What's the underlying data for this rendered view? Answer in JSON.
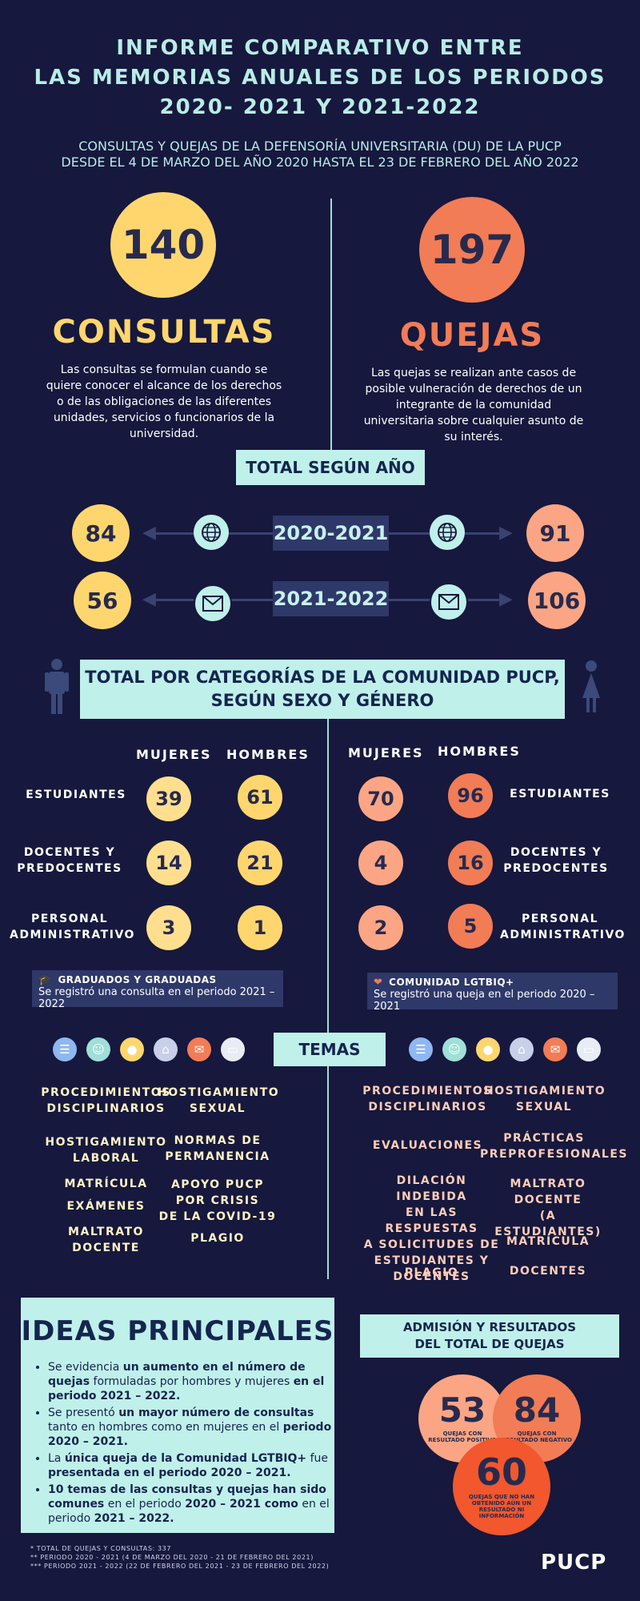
{
  "title": {
    "line1": "INFORME COMPARATIVO ENTRE",
    "line2": "LAS MEMORIAS ANUALES DE LOS PERIODOS",
    "line3": "2020- 2021 Y 2021-2022"
  },
  "subtitle": {
    "line1": "CONSULTAS Y QUEJAS  DE LA DEFENSORÍA UNIVERSITARIA (DU) DE LA PUCP",
    "line2": "DESDE EL 4 DE MARZO DEL AÑO 2020  HASTA EL 23 DE FEBRERO DEL AÑO 2022"
  },
  "consultas": {
    "total": "140",
    "label": "CONSULTAS",
    "description": "Las consultas se formulan cuando se quiere conocer el alcance de los derechos o de las obligaciones de las diferentes unidades, servicios o funcionarios de la universidad.",
    "color": "#ffd66e"
  },
  "quejas": {
    "total": "197",
    "label": "QUEJAS",
    "description": "Las quejas se realizan ante casos de posible vulneración de derechos de un integrante de la comunidad universitaria sobre cualquier asunto de su interés.",
    "color": "#f27c55"
  },
  "by_year": {
    "heading": "TOTAL SEGÚN AÑO",
    "rows": [
      {
        "year": "2020-2021",
        "consultas": "84",
        "quejas": "91",
        "icon": "globe-icon"
      },
      {
        "year": "2021-2022",
        "consultas": "56",
        "quejas": "106",
        "icon": "mail-icon"
      }
    ]
  },
  "categories": {
    "heading_line1": "TOTAL POR CATEGORÍAS DE LA COMUNIDAD PUCP,",
    "heading_line2": "SEGÚN SEXO Y GÉNERO",
    "women": "MUJERES",
    "men": "HOMBRES",
    "rows": [
      {
        "label": "ESTUDIANTES",
        "c_m": "39",
        "c_h": "61",
        "q_m": "70",
        "q_h": "96"
      },
      {
        "label_line1": "DOCENTES Y",
        "label_line2": "PREDOCENTES",
        "c_m": "14",
        "c_h": "21",
        "q_m": "4",
        "q_h": "16"
      },
      {
        "label_line1": "PERSONAL",
        "label_line2": "ADMINISTRATIVO",
        "c_m": "3",
        "c_h": "1",
        "q_m": "2",
        "q_h": "5"
      }
    ],
    "note_left": {
      "title": "GRADUADOS Y GRADUADAS",
      "text": "Se registró una consulta en el periodo 2021 – 2022",
      "icon": "graduation-cap-icon"
    },
    "note_right": {
      "title": "COMUNIDAD LGTBIQ+",
      "text": "Se registró una queja en el periodo 2020 – 2021",
      "icon": "rainbow-heart-icon"
    }
  },
  "temas": {
    "heading": "TEMAS",
    "icons": [
      "clipboard-icon",
      "group-icon",
      "person-icon",
      "building-icon",
      "mail-icon",
      "presentation-icon"
    ],
    "left": [
      {
        "l1": "PROCEDIMIENTOS",
        "l2": "DISCIPLINARIOS"
      },
      {
        "l1": "HOSTIGAMIENTO",
        "l2": "SEXUAL"
      },
      {
        "l1": "HOSTIGAMIENTO",
        "l2": "LABORAL"
      },
      {
        "l1": "NORMAS DE",
        "l2": "PERMANENCIA"
      },
      {
        "l1": "MATRÍCULA"
      },
      {
        "l1": "APOYO PUCP",
        "l2": "POR CRISIS",
        "l3": "DE LA COVID-19"
      },
      {
        "l1": "EXÁMENES"
      },
      {
        "l1": "MALTRATO",
        "l2": "DOCENTE"
      },
      {
        "l1": "PLAGIO"
      }
    ],
    "right": [
      {
        "l1": "PROCEDIMIENTOS",
        "l2": "DISCIPLINARIOS"
      },
      {
        "l1": "HOSTIGAMIENTO",
        "l2": "SEXUAL"
      },
      {
        "l1": "EVALUACIONES"
      },
      {
        "l1": "PRÁCTICAS",
        "l2": "PREPROFESIONALES"
      },
      {
        "l1": "DILACIÓN INDEBIDA",
        "l2": "EN LAS RESPUESTAS",
        "l3": "A SOLICITUDES DE",
        "l4": "ESTUDIANTES Y",
        "l5": "DOCENTES"
      },
      {
        "l1": "MALTRATO",
        "l2": "DOCENTE",
        "l3": "(A ESTUDIANTES)"
      },
      {
        "l1": "MATRÍCULA"
      },
      {
        "l1": "PLAGIO"
      },
      {
        "l1": "DOCENTES"
      }
    ]
  },
  "ideas": {
    "heading": "IDEAS PRINCIPALES",
    "items": [
      {
        "a": "Se evidencia ",
        "b": "un aumento en el número de quejas",
        "c": " formuladas por hombres y mujeres ",
        "d": "en el periodo 2021 – 2022."
      },
      {
        "a": "Se presentó ",
        "b": "un mayor número de consultas",
        "c": " tanto en hombres como en mujeres en el ",
        "d": "periodo 2020 – 2021."
      },
      {
        "a": "La ",
        "b": "única queja de la Comunidad LGTBIQ+",
        "c": " fue ",
        "d": "presentada en el periodo 2020 – 2021."
      },
      {
        "a": "",
        "b": "10 temas de las consultas y quejas han sido comunes",
        "c": " en el periodo ",
        "d": "2020 – 2021 como",
        "e": " en el periodo ",
        "f": "2021 – 2022."
      }
    ]
  },
  "admision": {
    "heading_line1": "ADMISIÓN Y RESULTADOS",
    "heading_line2": "DEL  TOTAL DE QUEJAS",
    "positive": {
      "value": "53",
      "l1": "QUEJAS CON",
      "l2": "RESULTADO POSITIVO"
    },
    "negative": {
      "value": "84",
      "l1": "QUEJAS CON",
      "l2": "RESULTADO NEGATIVO"
    },
    "pending": {
      "value": "60",
      "l1": "QUEJAS QUE NO HAN",
      "l2": "OBTENIDO AÚN UN",
      "l3": "RESULTADO NI",
      "l4": "INFORMACIÓN"
    }
  },
  "footnotes": {
    "f1": "* TOTAL DE QUEJAS Y CONSULTAS: 337",
    "f2": "** PERIODO 2020 - 2021 (4 DE MARZO DEL 2020 - 21 DE FEBRERO DEL 2021)",
    "f3": "*** PERIODO 2021 - 2022 (22 DE FEBRERO DEL 2021 - 23 DE FEBRERO DEL 2022)"
  },
  "logo": "PUCP"
}
